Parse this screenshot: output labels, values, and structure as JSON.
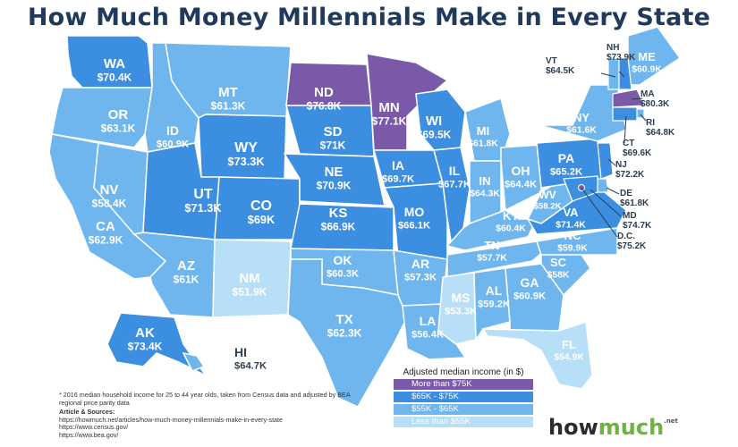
{
  "title": "How Much Money Millennials Make in Every State",
  "colors": {
    "tier1": "#7a5aa8",
    "tier2": "#3c8ee0",
    "tier3": "#6fb6ef",
    "tier4": "#b8dff8",
    "border": "#ffffff",
    "dark_text": "#2d3e50"
  },
  "states": [
    {
      "abbr": "WA",
      "value": "$70.4K",
      "tier": 2
    },
    {
      "abbr": "OR",
      "value": "$63.1K",
      "tier": 3
    },
    {
      "abbr": "CA",
      "value": "$62.9K",
      "tier": 3
    },
    {
      "abbr": "NV",
      "value": "$58.4K",
      "tier": 3
    },
    {
      "abbr": "ID",
      "value": "$60.9K",
      "tier": 3
    },
    {
      "abbr": "MT",
      "value": "$61.3K",
      "tier": 3
    },
    {
      "abbr": "WY",
      "value": "$73.3K",
      "tier": 2
    },
    {
      "abbr": "UT",
      "value": "$71.3K",
      "tier": 2
    },
    {
      "abbr": "CO",
      "value": "$69K",
      "tier": 2
    },
    {
      "abbr": "AZ",
      "value": "$61K",
      "tier": 3
    },
    {
      "abbr": "NM",
      "value": "$51.9K",
      "tier": 4
    },
    {
      "abbr": "ND",
      "value": "$76.8K",
      "tier": 1
    },
    {
      "abbr": "SD",
      "value": "$71K",
      "tier": 2
    },
    {
      "abbr": "NE",
      "value": "$70.9K",
      "tier": 2
    },
    {
      "abbr": "KS",
      "value": "$66.9K",
      "tier": 2
    },
    {
      "abbr": "OK",
      "value": "$60.3K",
      "tier": 3
    },
    {
      "abbr": "TX",
      "value": "$62.3K",
      "tier": 3
    },
    {
      "abbr": "MN",
      "value": "$77.1K",
      "tier": 1
    },
    {
      "abbr": "IA",
      "value": "$69.7K",
      "tier": 2
    },
    {
      "abbr": "MO",
      "value": "$66.1K",
      "tier": 2
    },
    {
      "abbr": "AR",
      "value": "$57.3K",
      "tier": 3
    },
    {
      "abbr": "LA",
      "value": "$56.4K",
      "tier": 3
    },
    {
      "abbr": "WI",
      "value": "$69.5K",
      "tier": 2
    },
    {
      "abbr": "IL",
      "value": "$67.7K",
      "tier": 2
    },
    {
      "abbr": "MI",
      "value": "$61.8K",
      "tier": 3
    },
    {
      "abbr": "IN",
      "value": "$64.3K",
      "tier": 3
    },
    {
      "abbr": "OH",
      "value": "$64.4K",
      "tier": 3
    },
    {
      "abbr": "KY",
      "value": "$60.4K",
      "tier": 3
    },
    {
      "abbr": "TN",
      "value": "$57.7K",
      "tier": 3
    },
    {
      "abbr": "MS",
      "value": "$53.3K",
      "tier": 4
    },
    {
      "abbr": "AL",
      "value": "$59.2K",
      "tier": 3
    },
    {
      "abbr": "GA",
      "value": "$60.9K",
      "tier": 3
    },
    {
      "abbr": "FL",
      "value": "$54.9K",
      "tier": 4
    },
    {
      "abbr": "SC",
      "value": "$58K",
      "tier": 3
    },
    {
      "abbr": "NC",
      "value": "$59.9K",
      "tier": 3
    },
    {
      "abbr": "VA",
      "value": "$71.4K",
      "tier": 2
    },
    {
      "abbr": "WV",
      "value": "$58.2K",
      "tier": 3
    },
    {
      "abbr": "PA",
      "value": "$65.2K",
      "tier": 2
    },
    {
      "abbr": "NY",
      "value": "$61.6K",
      "tier": 3
    },
    {
      "abbr": "ME",
      "value": "$60.9K",
      "tier": 3
    },
    {
      "abbr": "AK",
      "value": "$73.4K",
      "tier": 2
    },
    {
      "abbr": "HI",
      "value": "$64.7K",
      "tier": 3
    }
  ],
  "callouts": [
    {
      "abbr": "VT",
      "value": "$64.5K"
    },
    {
      "abbr": "NH",
      "value": "$73.9K"
    },
    {
      "abbr": "MA",
      "value": "$80.3K"
    },
    {
      "abbr": "RI",
      "value": "$64.8K"
    },
    {
      "abbr": "CT",
      "value": "$69.6K"
    },
    {
      "abbr": "NJ",
      "value": "$72.2K"
    },
    {
      "abbr": "DE",
      "value": "$61.8K"
    },
    {
      "abbr": "MD",
      "value": "$74.7K"
    },
    {
      "abbr": "D.C.",
      "value": "$75.2K"
    }
  ],
  "legend": {
    "title": "Adjusted median income (in $)",
    "items": [
      {
        "label": "More than $75K",
        "color": "#7a5aa8"
      },
      {
        "label": "$65K - $75K",
        "color": "#3c8ee0"
      },
      {
        "label": "$55K - $65K",
        "color": "#6fb6ef"
      },
      {
        "label": "Less than $55K",
        "color": "#b8dff8"
      }
    ]
  },
  "footnote": {
    "text": "* 2016 median household income for 25 to 44 year olds, taken from Census data and adjusted by BEA regional price parity data",
    "sources_title": "Article & Sources:",
    "sources": [
      "https://howmuch.net/articles/how-much-money-millennials-make-in-every-state",
      "https://www.census.gov/",
      "https://www.bea.gov/"
    ]
  },
  "logo": {
    "part1": "how",
    "part2": "much",
    "suffix": ".net"
  }
}
